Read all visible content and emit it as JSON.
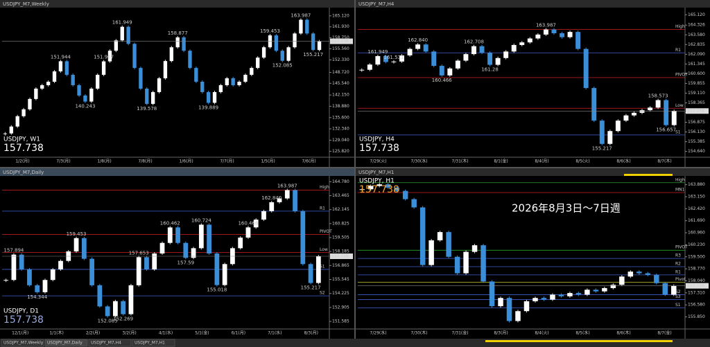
{
  "tabs": [
    "USDJPY_M7,Weekly",
    "USDJPY_M7,Daily",
    "USDJPY_M7,H4",
    "USDJPY_M7,H1"
  ],
  "panels": [
    {
      "title": "USDJPY_M7,Weekly",
      "symbol": "USDJPY, W1",
      "price": 157.738,
      "ylim": [
        124.5,
        166.5
      ],
      "yticks": [
        {
          "value": 165.12,
          "label": "165.120"
        },
        {
          "value": 161.93,
          "label": "161.930"
        },
        {
          "value": 158.75,
          "label": "158.750"
        },
        {
          "value": 155.56,
          "label": "155.560"
        },
        {
          "value": 152.33,
          "label": "152.330"
        },
        {
          "value": 148.72,
          "label": "148.720"
        },
        {
          "value": 145.54,
          "label": "145.540"
        },
        {
          "value": 142.15,
          "label": "142.150"
        },
        {
          "value": 138.88,
          "label": "138.880"
        },
        {
          "value": 135.6,
          "label": "135.600"
        },
        {
          "value": 132.34,
          "label": "132.340"
        },
        {
          "value": 129.04,
          "label": "129.040"
        },
        {
          "value": 125.82,
          "label": "125.820"
        }
      ],
      "xlabels": [
        "1/2(月)",
        "7/3(月)",
        "1/8(月)",
        "7/8(月)",
        "1/6(月)",
        "7/7(月)",
        "1/5(月)",
        "7/6(月)"
      ],
      "closes": [
        131,
        133,
        136,
        138,
        141,
        144,
        145,
        146,
        149,
        151.944,
        148,
        145,
        142,
        140.243,
        144,
        148,
        151.907,
        155,
        158,
        161.949,
        157,
        150,
        144,
        139.578,
        143,
        147,
        152,
        156,
        158.877,
        155,
        150,
        146,
        143,
        139.889,
        143,
        145,
        147,
        145,
        146,
        148,
        150,
        153,
        156,
        159.453,
        155,
        152.085,
        156,
        160,
        163.987,
        160,
        155.217,
        157.738
      ],
      "annotations": [
        151.944,
        151.907,
        140.243,
        161.949,
        139.578,
        158.877,
        139.889,
        159.453,
        152.085,
        163.987,
        155.217
      ],
      "levels": []
    },
    {
      "title": "USDJPY_M7,H4",
      "symbol": "USDJPY, H4",
      "price": 157.738,
      "ylim": [
        154.3,
        165.4
      ],
      "yticks": [
        {
          "value": 165.12,
          "label": "165.120"
        },
        {
          "value": 164.326,
          "label": "164.326"
        },
        {
          "value": 163.58,
          "label": "163.580"
        },
        {
          "value": 162.835,
          "label": "162.835"
        },
        {
          "value": 162.09,
          "label": "162.090"
        },
        {
          "value": 161.345,
          "label": "161.345"
        },
        {
          "value": 160.6,
          "label": "160.600"
        },
        {
          "value": 159.855,
          "label": "159.855"
        },
        {
          "value": 159.11,
          "label": "159.110"
        },
        {
          "value": 158.365,
          "label": "158.365"
        },
        {
          "value": 157.62,
          "label": "157.620"
        },
        {
          "value": 156.875,
          "label": "156.875"
        },
        {
          "value": 156.13,
          "label": "156.130"
        },
        {
          "value": 155.385,
          "label": "155.385"
        },
        {
          "value": 154.64,
          "label": "154.640"
        }
      ],
      "xlabels": [
        "7/29(火)",
        "7/30(水)",
        "7/31(木)",
        "8/1(金)",
        "8/4(月)",
        "8/5(火)",
        "8/6(水)",
        "8/7(木)"
      ],
      "closes": [
        160.9,
        161.3,
        161.949,
        161.5,
        161.531,
        162.0,
        162.5,
        162.84,
        162.3,
        161.2,
        160.466,
        161.0,
        161.6,
        162.1,
        162.708,
        162.2,
        161.28,
        161.8,
        162.3,
        162.8,
        163.0,
        163.3,
        163.6,
        163.987,
        163.7,
        163.4,
        163.8,
        162.5,
        159.5,
        157.0,
        155.217,
        156.2,
        157.0,
        157.4,
        157.6,
        157.8,
        158.0,
        158.573,
        156.657,
        157.738
      ],
      "annotations": [
        161.949,
        161.531,
        {
          "value": 162.84,
          "label": "162.840"
        },
        160.466,
        162.708,
        161.28,
        163.987,
        158.573,
        156.657,
        155.217
      ],
      "levels": [
        {
          "name": "High",
          "value": 163.987,
          "color": "#d02020"
        },
        {
          "name": "R1",
          "value": 162.2,
          "color": "#4060d0"
        },
        {
          "name": "PIVOT",
          "value": 160.3,
          "color": "#d02020"
        },
        {
          "name": "Low",
          "value": 157.95,
          "color": "#d02020"
        },
        {
          "name": "S1",
          "value": 155.9,
          "color": "#4060d0"
        }
      ]
    },
    {
      "title": "USDJPY_M7,Daily",
      "symbol": "USDJPY, D1",
      "price": 157.738,
      "ylim": [
        151,
        165
      ],
      "yticks": [
        {
          "value": 164.78,
          "label": "164.780"
        },
        {
          "value": 163.465,
          "label": "163.465"
        },
        {
          "value": 162.145,
          "label": "162.145"
        },
        {
          "value": 160.825,
          "label": "160.825"
        },
        {
          "value": 159.505,
          "label": "159.505"
        },
        {
          "value": 158.185,
          "label": "158.185"
        },
        {
          "value": 156.865,
          "label": "156.865"
        },
        {
          "value": 155.545,
          "label": "155.545"
        },
        {
          "value": 154.225,
          "label": "154.225"
        },
        {
          "value": 152.905,
          "label": "152.905"
        },
        {
          "value": 151.585,
          "label": "151.585"
        }
      ],
      "xlabels": [
        "12/1(月)",
        "1/1(木)",
        "2/2(月)",
        "3/2(月)",
        "4/1(水)",
        "5/1(金)",
        "6/1(月)",
        "7/1(水)",
        "8/3(月)"
      ],
      "closes": [
        155.5,
        157.894,
        156.5,
        155.0,
        154.344,
        155.5,
        156.5,
        157.3,
        158.2,
        159.453,
        157.5,
        155.0,
        153.0,
        152.085,
        153.5,
        152.269,
        155.0,
        157.653,
        156.5,
        158.0,
        159.0,
        160.462,
        159.0,
        157.59,
        158.5,
        160.724,
        158.0,
        155.018,
        157.0,
        158.5,
        159.5,
        160.466,
        161.2,
        162.0,
        162.84,
        163.2,
        163.987,
        162.0,
        157.0,
        155.217,
        157.738
      ],
      "annotations": [
        157.894,
        154.344,
        159.453,
        152.085,
        152.269,
        157.653,
        160.462,
        157.59,
        160.724,
        155.018,
        160.466,
        {
          "value": 162.84,
          "label": "162.840"
        },
        163.987,
        155.217
      ],
      "levels": [
        {
          "name": "High",
          "value": 163.987,
          "color": "#d02020"
        },
        {
          "name": "R1",
          "value": 162.0,
          "color": "#4060d0"
        },
        {
          "name": "PIVOT",
          "value": 159.8,
          "color": "#d02020"
        },
        {
          "name": "Low",
          "value": 158.1,
          "color": "#d02020"
        },
        {
          "name": "S1",
          "value": 156.5,
          "color": "#4060d0"
        },
        {
          "name": "S2",
          "value": 154.0,
          "color": "#4060d0"
        }
      ]
    },
    {
      "title": "USDJPY_M7,H1",
      "symbol": "USDJPY, H1",
      "price": 157.738,
      "ylim": [
        155.2,
        164.2
      ],
      "note": "2026年8月3日～7日週",
      "yticks": [
        {
          "value": 163.88,
          "label": "163.880"
        },
        {
          "value": 163.15,
          "label": "163.150"
        },
        {
          "value": 162.42,
          "label": "162.420"
        },
        {
          "value": 161.69,
          "label": "161.690"
        },
        {
          "value": 160.96,
          "label": "160.960"
        },
        {
          "value": 160.23,
          "label": "160.230"
        },
        {
          "value": 159.5,
          "label": "159.500"
        },
        {
          "value": 158.77,
          "label": "158.770"
        },
        {
          "value": 158.04,
          "label": "158.040"
        },
        {
          "value": 157.31,
          "label": "157.310"
        },
        {
          "value": 156.58,
          "label": "156.580"
        },
        {
          "value": 155.85,
          "label": "155.850"
        }
      ],
      "xlabels": [
        "7/29(水)",
        "7/30(木)",
        "7/31(金)",
        "8/3(月)",
        "8/4(火)",
        "8/5(水)",
        "8/6(木)",
        "8/7(金)"
      ],
      "closes": [
        163.6,
        163.8,
        163.9,
        163.7,
        163.5,
        163.0,
        162.5,
        159.0,
        160.5,
        161.0,
        159.5,
        158.5,
        159.8,
        160.2,
        158.0,
        156.5,
        157.0,
        155.6,
        156.2,
        156.8,
        157.0,
        156.9,
        157.2,
        157.1,
        157.3,
        157.2,
        157.5,
        157.4,
        157.6,
        157.8,
        158.3,
        158.6,
        158.5,
        158.4,
        157.9,
        157.2,
        157.738
      ],
      "annotations": [],
      "levels": [
        {
          "name": "High",
          "value": 164.0,
          "color": "#30a030"
        },
        {
          "name": "MN1",
          "value": 163.4,
          "color": "#d02020"
        },
        {
          "name": "PIVOT",
          "value": 159.9,
          "color": "#30c030"
        },
        {
          "name": "R3",
          "value": 159.4,
          "color": "#4060d0"
        },
        {
          "name": "R2",
          "value": 158.9,
          "color": "#4060d0"
        },
        {
          "name": "R1",
          "value": 158.4,
          "color": "#4060d0"
        },
        {
          "name": "Pivot",
          "value": 157.95,
          "color": "#d0d030"
        },
        {
          "name": "S2",
          "value": 157.2,
          "color": "#4060d0"
        },
        {
          "name": "S3",
          "value": 156.9,
          "color": "#4060d0"
        },
        {
          "name": "S1",
          "value": 156.4,
          "color": "#4060d0"
        }
      ]
    }
  ]
}
